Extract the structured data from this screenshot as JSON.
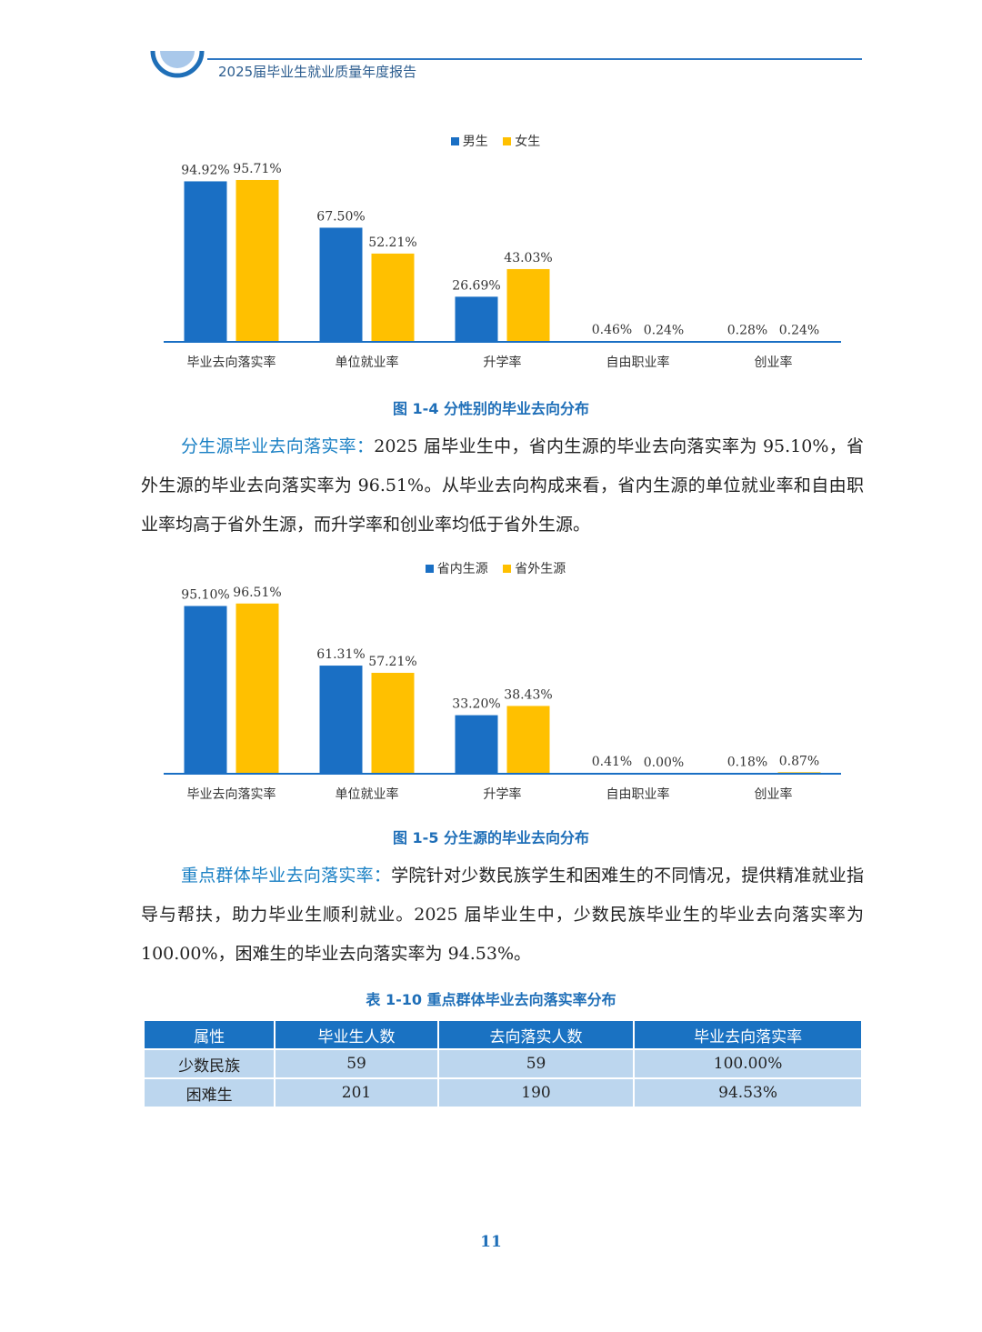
{
  "header": {
    "title": "2025届毕业生就业质量年度报告"
  },
  "colors": {
    "primary": "#1a6fc4",
    "secondary": "#ffc000",
    "accent_text": "#1a80c4",
    "table_head": "#1a72c2",
    "table_cell": "#bcd6ee"
  },
  "chart_data": [
    {
      "type": "bar",
      "title": "",
      "categories": [
        "毕业去向落实率",
        "单位就业率",
        "升学率",
        "自由职业率",
        "创业率"
      ],
      "series": [
        {
          "name": "男生",
          "values": [
            94.92,
            67.5,
            26.69,
            0.46,
            0.28
          ],
          "labels": [
            "94.92%",
            "67.50%",
            "26.69%",
            "0.46%",
            "0.28%"
          ]
        },
        {
          "name": "女生",
          "values": [
            95.71,
            52.21,
            43.03,
            0.24,
            0.24
          ],
          "labels": [
            "95.71%",
            "52.21%",
            "43.03%",
            "0.24%",
            "0.24%"
          ]
        }
      ],
      "ylim": [
        0,
        100
      ],
      "legend": "top-center",
      "grid": false
    },
    {
      "type": "bar",
      "title": "",
      "categories": [
        "毕业去向落实率",
        "单位就业率",
        "升学率",
        "自由职业率",
        "创业率"
      ],
      "series": [
        {
          "name": "省内生源",
          "values": [
            95.1,
            61.31,
            33.2,
            0.41,
            0.18
          ],
          "labels": [
            "95.10%",
            "61.31%",
            "33.20%",
            "0.41%",
            "0.18%"
          ]
        },
        {
          "name": "省外生源",
          "values": [
            96.51,
            57.21,
            38.43,
            0.0,
            0.87
          ],
          "labels": [
            "96.51%",
            "57.21%",
            "38.43%",
            "0.00%",
            "0.87%"
          ]
        }
      ],
      "ylim": [
        0,
        100
      ],
      "legend": "top-center",
      "grid": false
    }
  ],
  "captions": {
    "fig1": "图 1-4  分性别的毕业去向分布",
    "fig2": "图 1-5  分生源的毕业去向分布",
    "table": "表 1-10  重点群体毕业去向落实率分布"
  },
  "paragraphs": {
    "p1_lead": "分生源毕业去向落实率：",
    "p1_body": "2025 届毕业生中，省内生源的毕业去向落实率为 95.10%，省外生源的毕业去向落实率为 96.51%。从毕业去向构成来看，省内生源的单位就业率和自由职业率均高于省外生源，而升学率和创业率均低于省外生源。",
    "p2_lead": "重点群体毕业去向落实率：",
    "p2_body": "学院针对少数民族学生和困难生的不同情况，提供精准就业指导与帮扶，助力毕业生顺利就业。2025 届毕业生中，少数民族毕业生的毕业去向落实率为 100.00%，困难生的毕业去向落实率为 94.53%。"
  },
  "table": {
    "headers": [
      "属性",
      "毕业生人数",
      "去向落实人数",
      "毕业去向落实率"
    ],
    "rows": [
      [
        "少数民族",
        "59",
        "59",
        "100.00%"
      ],
      [
        "困难生",
        "201",
        "190",
        "94.53%"
      ]
    ]
  },
  "page_number": "11"
}
